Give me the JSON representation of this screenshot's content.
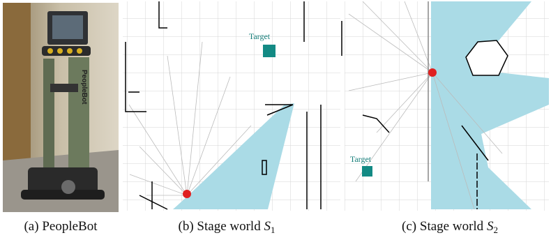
{
  "panels": [
    {
      "robot_label": "PeopleBot",
      "caption": {
        "label": "(a) PeopleBot"
      }
    },
    {
      "target_label": "Target",
      "caption": {
        "label": "(b) Stage world",
        "symbol": "S",
        "subscript": "1"
      }
    },
    {
      "target_label": "Target",
      "caption": {
        "label": "(c) Stage world",
        "symbol": "S",
        "subscript": "2"
      }
    }
  ]
}
